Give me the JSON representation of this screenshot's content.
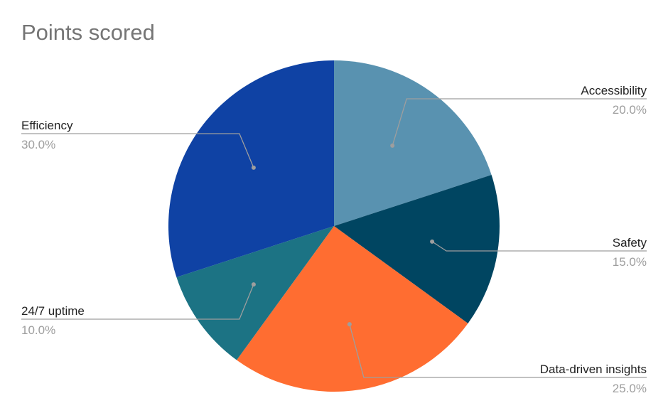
{
  "chart_data": {
    "type": "pie",
    "title": "Points scored",
    "slices": [
      {
        "name": "Accessibility",
        "value": 20.0,
        "label": "20.0%",
        "color": "#5992b0"
      },
      {
        "name": "Safety",
        "value": 15.0,
        "label": "15.0%",
        "color": "#004561"
      },
      {
        "name": "Data-driven insights",
        "value": 25.0,
        "label": "25.0%",
        "color": "#ff6d31"
      },
      {
        "name": "24/7 uptime",
        "value": 10.0,
        "label": "10.0%",
        "color": "#1c7384"
      },
      {
        "name": "Efficiency",
        "value": 30.0,
        "label": "30.0%",
        "color": "#0f42a4"
      }
    ],
    "start_angle_deg": 0,
    "direction": "clockwise",
    "legend": "none"
  }
}
